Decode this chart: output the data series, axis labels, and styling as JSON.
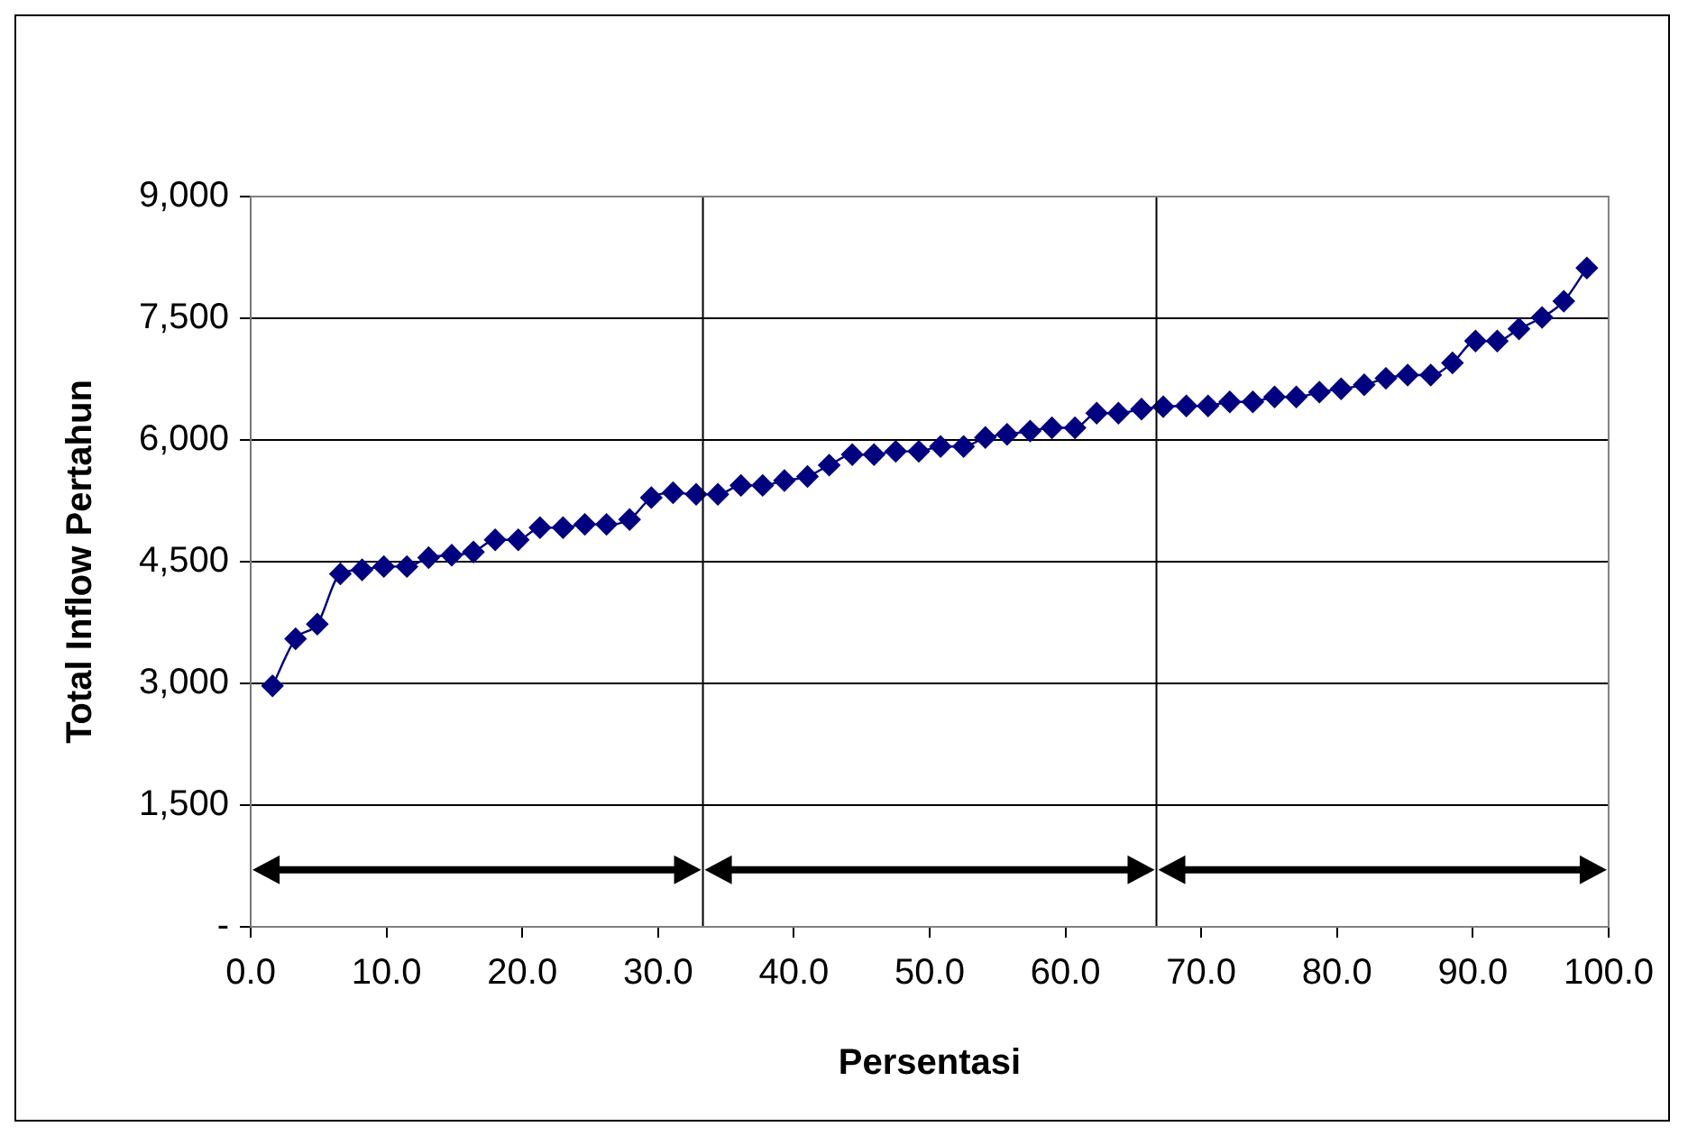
{
  "chart_data": {
    "type": "line",
    "xlabel": "Persentasi",
    "ylabel": "Total Inflow Pertahun",
    "x": [
      1.6,
      3.3,
      4.9,
      6.6,
      8.2,
      9.8,
      11.5,
      13.1,
      14.8,
      16.4,
      18.0,
      19.7,
      21.3,
      23.0,
      24.6,
      26.2,
      27.9,
      29.5,
      31.1,
      32.8,
      34.4,
      36.1,
      37.7,
      39.3,
      41.0,
      42.6,
      44.3,
      45.9,
      47.5,
      49.2,
      50.8,
      52.5,
      54.1,
      55.7,
      57.4,
      59.0,
      60.7,
      62.3,
      63.9,
      65.6,
      67.2,
      68.9,
      70.5,
      72.1,
      73.8,
      75.4,
      77.0,
      78.7,
      80.3,
      82.0,
      83.6,
      85.2,
      86.9,
      88.5,
      90.2,
      91.8,
      93.4,
      95.1,
      96.7,
      98.4
    ],
    "series": [
      {
        "color": "#000080",
        "values": [
          2970,
          3550,
          3730,
          4350,
          4400,
          4440,
          4440,
          4550,
          4580,
          4620,
          4770,
          4770,
          4920,
          4920,
          4960,
          4960,
          5020,
          5290,
          5350,
          5330,
          5330,
          5440,
          5440,
          5500,
          5550,
          5690,
          5820,
          5820,
          5860,
          5860,
          5920,
          5920,
          6030,
          6070,
          6110,
          6150,
          6150,
          6330,
          6330,
          6380,
          6410,
          6420,
          6420,
          6470,
          6470,
          6530,
          6530,
          6590,
          6630,
          6680,
          6760,
          6800,
          6800,
          6950,
          7220,
          7220,
          7370,
          7510,
          7710,
          8120
        ]
      }
    ],
    "xlim": [
      0,
      100
    ],
    "xticks": [
      {
        "value": 0,
        "label": "0.0"
      },
      {
        "value": 10,
        "label": "10.0"
      },
      {
        "value": 20,
        "label": "20.0"
      },
      {
        "value": 30,
        "label": "30.0"
      },
      {
        "value": 40,
        "label": "40.0"
      },
      {
        "value": 50,
        "label": "50.0"
      },
      {
        "value": 60,
        "label": "60.0"
      },
      {
        "value": 70,
        "label": "70.0"
      },
      {
        "value": 80,
        "label": "80.0"
      },
      {
        "value": 90,
        "label": "90.0"
      },
      {
        "value": 100,
        "label": "100.0"
      }
    ],
    "ylim": [
      0,
      9000
    ],
    "yticks": [
      {
        "value": 0,
        "label": "-"
      },
      {
        "value": 1500,
        "label": "1,500"
      },
      {
        "value": 3000,
        "label": "3,000"
      },
      {
        "value": 4500,
        "label": "4,500"
      },
      {
        "value": 6000,
        "label": "6,000"
      },
      {
        "value": 7500,
        "label": "7,500"
      },
      {
        "value": 9000,
        "label": "9,000"
      }
    ],
    "ref_lines": [
      {
        "axis": "x",
        "value": 33.3,
        "color": "#000000"
      },
      {
        "axis": "x",
        "value": 66.7,
        "color": "#000000"
      }
    ],
    "grid": "y",
    "legend": false,
    "marker": "diamond",
    "line_style": "solid"
  }
}
